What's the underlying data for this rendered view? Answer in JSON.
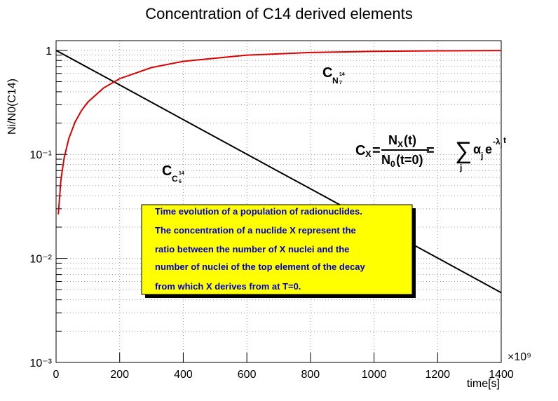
{
  "chart_data": {
    "type": "line",
    "title": "Concentration of C14 derived elements",
    "x_label": "time[s]",
    "y_label": "Ni/N0(C14)",
    "x_multiplier": "×10⁹",
    "xlim": [
      0,
      1400
    ],
    "xticks": [
      0,
      200,
      400,
      600,
      800,
      1000,
      1200,
      1400
    ],
    "ylim": [
      0.001,
      1.24
    ],
    "yticks": [
      {
        "value": 0.001,
        "label": "10⁻³"
      },
      {
        "value": 0.01,
        "label": "10⁻²"
      },
      {
        "value": 0.1,
        "label": "10⁻¹"
      },
      {
        "value": 1,
        "label": "1"
      }
    ],
    "log_y": true,
    "grid": true,
    "series": [
      {
        "color": "#000000",
        "x": [
          0,
          200,
          400,
          600,
          800,
          1000,
          1200,
          1400
        ],
        "values": [
          1,
          0.4655,
          0.2158,
          0.1003,
          0.0467,
          0.0217,
          0.0101,
          0.00468
        ]
      },
      {
        "color": "#dd0000",
        "x": [
          7,
          15,
          25,
          40,
          60,
          80,
          100,
          150,
          200,
          300,
          400,
          600,
          800,
          1000,
          1200,
          1400
        ],
        "values": [
          0.0265,
          0.0558,
          0.0913,
          0.142,
          0.2054,
          0.2642,
          0.3184,
          0.4366,
          0.5345,
          0.6833,
          0.7842,
          0.8997,
          0.9534,
          0.9784,
          0.99,
          0.9953
        ]
      }
    ],
    "curve_labels": [
      {
        "main": "C",
        "sub": "N",
        "sup": "14",
        "subsub": "7"
      },
      {
        "main": "C",
        "sub": "C",
        "sup": "14",
        "subsub": "6"
      }
    ],
    "formula": {
      "lhs": "C",
      "lhs_sub": "X",
      "eq": "=",
      "num": "N",
      "num_sub": "X",
      "num_rest": "(t)",
      "den": "N",
      "den_sub": "0",
      "den_rest": "(t=0)",
      "sum": "∑",
      "sum_sub": "j",
      "alpha": "α",
      "alpha_sub": "j",
      "e": "e",
      "exp": "-λ",
      "exp_sub": "j",
      "exp_t": "t"
    },
    "note": [
      "Time evolution of a population of radionuclides.",
      "The concentration of a nuclide X represent the",
      "ratio between the number of X nuclei and the",
      "number of nuclei of the top element of the decay",
      "from which X derives from at T=0."
    ]
  }
}
